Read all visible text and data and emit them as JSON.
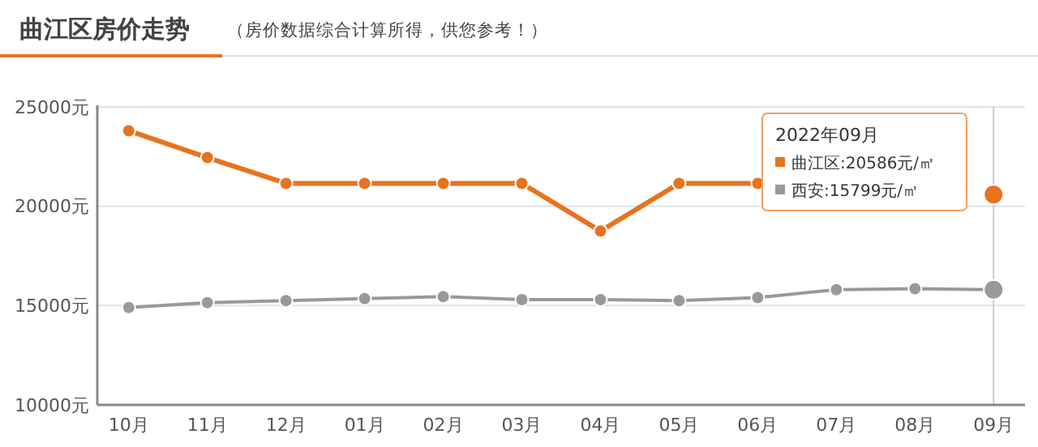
{
  "chart_data": {
    "type": "line",
    "title": "曲江区房价走势",
    "subtitle": "（房价数据综合计算所得，供您参考！）",
    "categories": [
      "10月",
      "11月",
      "12月",
      "01月",
      "02月",
      "03月",
      "04月",
      "05月",
      "06月",
      "07月",
      "08月",
      "09月"
    ],
    "series": [
      {
        "name": "曲江区:20586元/㎡",
        "color": "#e8731f",
        "values": [
          23800,
          22450,
          21150,
          21150,
          21150,
          21150,
          18750,
          21150,
          21150,
          null,
          null,
          20586
        ]
      },
      {
        "name": "西安:15799元/㎡",
        "color": "#999999",
        "values": [
          14900,
          15150,
          15250,
          15350,
          15450,
          15300,
          15300,
          15250,
          15400,
          15800,
          15850,
          15799
        ]
      }
    ],
    "ylim": [
      10000,
      25000
    ],
    "yticks": [
      {
        "value": 10000,
        "label": "10000元"
      },
      {
        "value": 15000,
        "label": "15000元"
      },
      {
        "value": 20000,
        "label": "20000元"
      },
      {
        "value": 25000,
        "label": "25000元"
      }
    ],
    "grid": "y",
    "legend": "top right",
    "legend_title": "2022年09月",
    "marker": "circle",
    "line_style": "solid",
    "ref_lines": [
      {
        "axis": "x",
        "value": "09月",
        "color": "#cccccc"
      }
    ]
  }
}
